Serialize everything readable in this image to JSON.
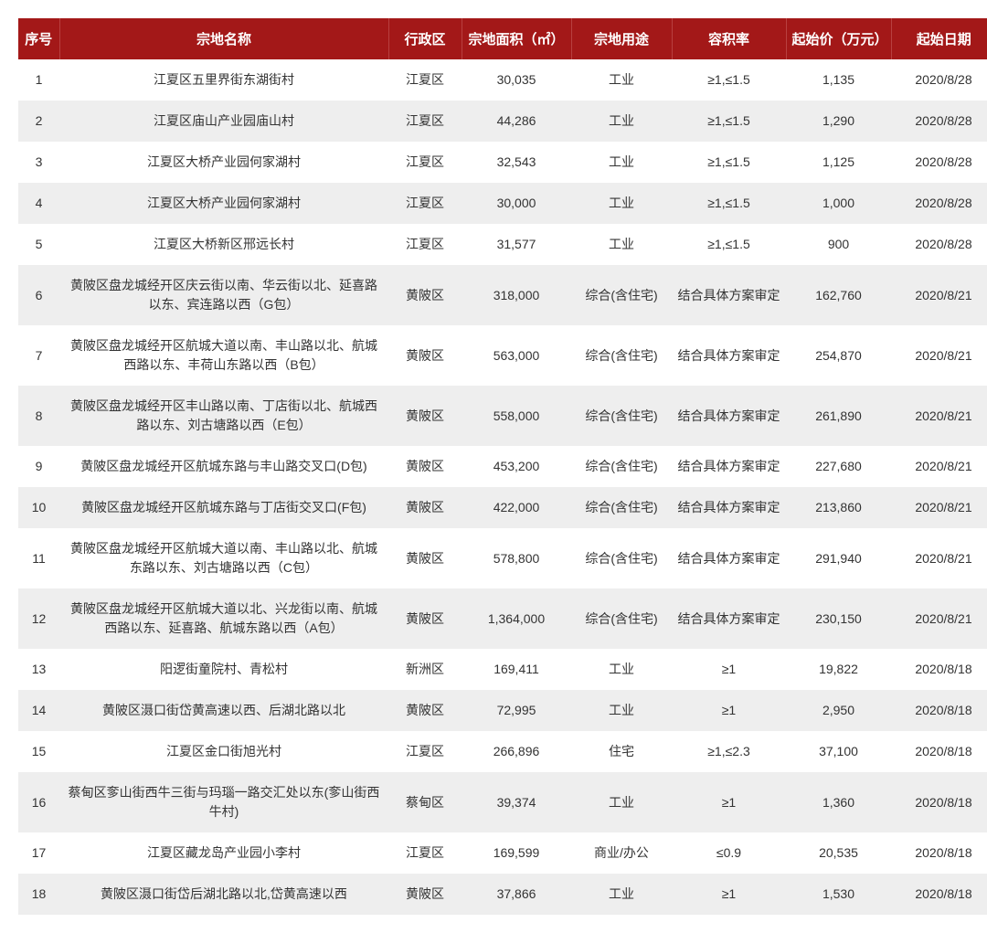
{
  "table": {
    "header_bg": "#a31818",
    "header_color": "#ffffff",
    "row_odd_bg": "#ffffff",
    "row_even_bg": "#eeeeee",
    "columns": [
      {
        "key": "seq",
        "label": "序号"
      },
      {
        "key": "name",
        "label": "宗地名称"
      },
      {
        "key": "district",
        "label": "行政区"
      },
      {
        "key": "area",
        "label": "宗地面积（㎡）"
      },
      {
        "key": "use",
        "label": "宗地用途"
      },
      {
        "key": "far",
        "label": "容积率"
      },
      {
        "key": "price",
        "label": "起始价（万元）"
      },
      {
        "key": "date",
        "label": "起始日期"
      }
    ],
    "rows": [
      {
        "seq": "1",
        "name": "江夏区五里界街东湖街村",
        "district": "江夏区",
        "area": "30,035",
        "use": "工业",
        "far": "≥1,≤1.5",
        "price": "1,135",
        "date": "2020/8/28"
      },
      {
        "seq": "2",
        "name": "江夏区庙山产业园庙山村",
        "district": "江夏区",
        "area": "44,286",
        "use": "工业",
        "far": "≥1,≤1.5",
        "price": "1,290",
        "date": "2020/8/28"
      },
      {
        "seq": "3",
        "name": "江夏区大桥产业园何家湖村",
        "district": "江夏区",
        "area": "32,543",
        "use": "工业",
        "far": "≥1,≤1.5",
        "price": "1,125",
        "date": "2020/8/28"
      },
      {
        "seq": "4",
        "name": "江夏区大桥产业园何家湖村",
        "district": "江夏区",
        "area": "30,000",
        "use": "工业",
        "far": "≥1,≤1.5",
        "price": "1,000",
        "date": "2020/8/28"
      },
      {
        "seq": "5",
        "name": "江夏区大桥新区邢远长村",
        "district": "江夏区",
        "area": "31,577",
        "use": "工业",
        "far": "≥1,≤1.5",
        "price": "900",
        "date": "2020/8/28"
      },
      {
        "seq": "6",
        "name": "黄陂区盘龙城经开区庆云街以南、华云街以北、延喜路以东、宾连路以西（G包）",
        "district": "黄陂区",
        "area": "318,000",
        "use": "综合(含住宅)",
        "far": "结合具体方案审定",
        "price": "162,760",
        "date": "2020/8/21"
      },
      {
        "seq": "7",
        "name": "黄陂区盘龙城经开区航城大道以南、丰山路以北、航城西路以东、丰荷山东路以西（B包）",
        "district": "黄陂区",
        "area": "563,000",
        "use": "综合(含住宅)",
        "far": "结合具体方案审定",
        "price": "254,870",
        "date": "2020/8/21"
      },
      {
        "seq": "8",
        "name": "黄陂区盘龙城经开区丰山路以南、丁店街以北、航城西路以东、刘古塘路以西（E包）",
        "district": "黄陂区",
        "area": "558,000",
        "use": "综合(含住宅)",
        "far": "结合具体方案审定",
        "price": "261,890",
        "date": "2020/8/21"
      },
      {
        "seq": "9",
        "name": "黄陂区盘龙城经开区航城东路与丰山路交叉口(D包)",
        "district": "黄陂区",
        "area": "453,200",
        "use": "综合(含住宅)",
        "far": "结合具体方案审定",
        "price": "227,680",
        "date": "2020/8/21"
      },
      {
        "seq": "10",
        "name": "黄陂区盘龙城经开区航城东路与丁店街交叉口(F包)",
        "district": "黄陂区",
        "area": "422,000",
        "use": "综合(含住宅)",
        "far": "结合具体方案审定",
        "price": "213,860",
        "date": "2020/8/21"
      },
      {
        "seq": "11",
        "name": "黄陂区盘龙城经开区航城大道以南、丰山路以北、航城东路以东、刘古塘路以西（C包）",
        "district": "黄陂区",
        "area": "578,800",
        "use": "综合(含住宅)",
        "far": "结合具体方案审定",
        "price": "291,940",
        "date": "2020/8/21"
      },
      {
        "seq": "12",
        "name": "黄陂区盘龙城经开区航城大道以北、兴龙街以南、航城西路以东、延喜路、航城东路以西（A包）",
        "district": "黄陂区",
        "area": "1,364,000",
        "use": "综合(含住宅)",
        "far": "结合具体方案审定",
        "price": "230,150",
        "date": "2020/8/21"
      },
      {
        "seq": "13",
        "name": "阳逻街童院村、青松村",
        "district": "新洲区",
        "area": "169,411",
        "use": "工业",
        "far": "≥1",
        "price": "19,822",
        "date": "2020/8/18"
      },
      {
        "seq": "14",
        "name": "黄陂区滠口街岱黄高速以西、后湖北路以北",
        "district": "黄陂区",
        "area": "72,995",
        "use": "工业",
        "far": "≥1",
        "price": "2,950",
        "date": "2020/8/18"
      },
      {
        "seq": "15",
        "name": "江夏区金口街旭光村",
        "district": "江夏区",
        "area": "266,896",
        "use": "住宅",
        "far": "≥1,≤2.3",
        "price": "37,100",
        "date": "2020/8/18"
      },
      {
        "seq": "16",
        "name": "蔡甸区奓山街西牛三街与玛瑙一路交汇处以东(奓山街西牛村)",
        "district": "蔡甸区",
        "area": "39,374",
        "use": "工业",
        "far": "≥1",
        "price": "1,360",
        "date": "2020/8/18"
      },
      {
        "seq": "17",
        "name": "江夏区藏龙岛产业园小李村",
        "district": "江夏区",
        "area": "169,599",
        "use": "商业/办公",
        "far": "≤0.9",
        "price": "20,535",
        "date": "2020/8/18"
      },
      {
        "seq": "18",
        "name": "黄陂区滠口街岱后湖北路以北,岱黄高速以西",
        "district": "黄陂区",
        "area": "37,866",
        "use": "工业",
        "far": "≥1",
        "price": "1,530",
        "date": "2020/8/18"
      }
    ]
  }
}
